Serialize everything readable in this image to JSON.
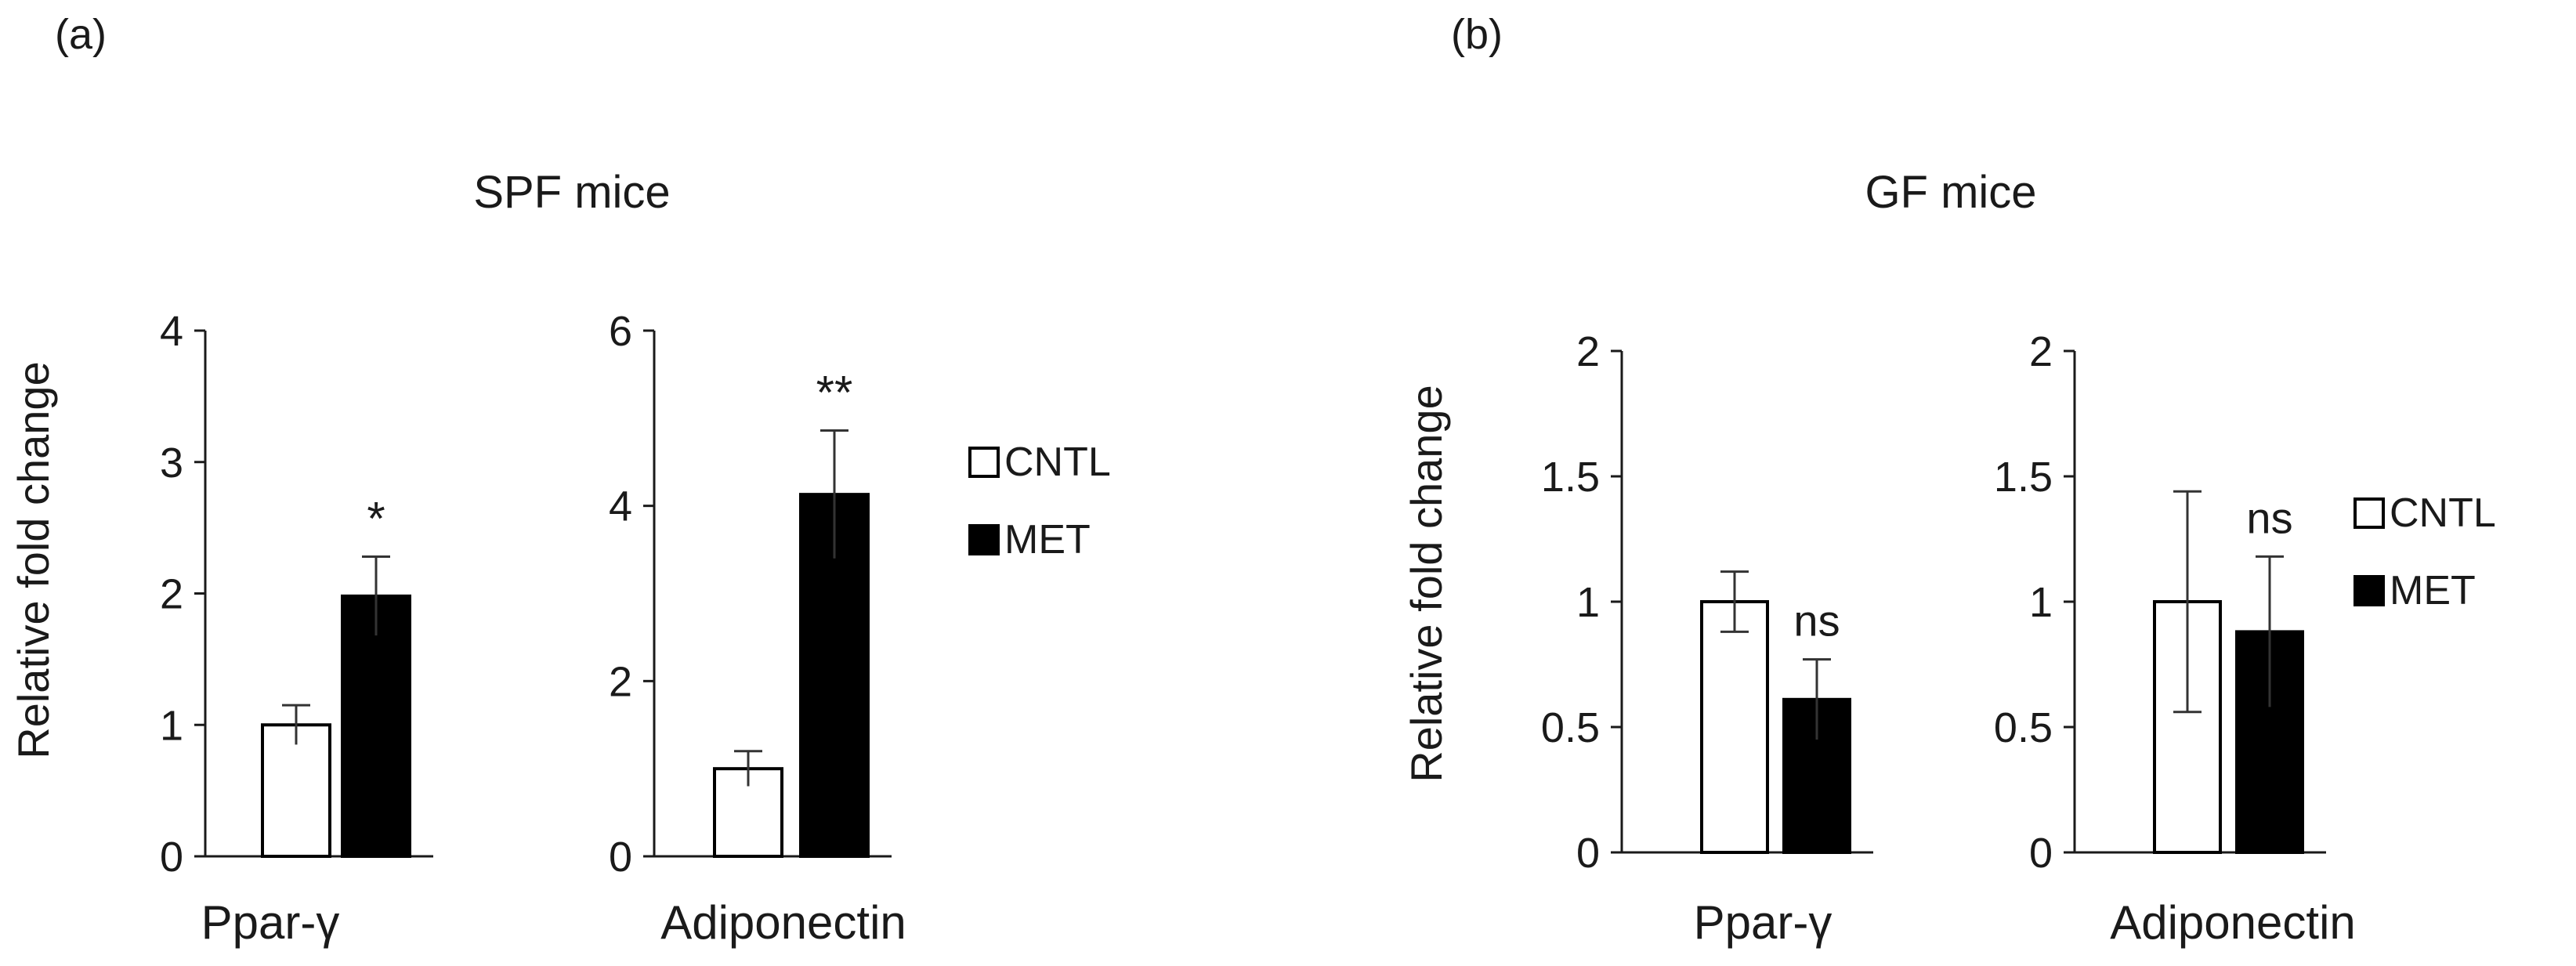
{
  "panels": [
    {
      "id": "a",
      "panel_label": "(a)",
      "title": "SPF mice",
      "legend": [
        "CNTL",
        "MET"
      ]
    },
    {
      "id": "b",
      "panel_label": "(b)",
      "title": "GF mice",
      "legend": [
        "CNTL",
        "MET"
      ]
    }
  ],
  "colors": {
    "CNTL": "#ffffff",
    "MET": "#000000",
    "axis": "#1a1a1a"
  },
  "chart_data": [
    {
      "type": "bar",
      "panel": "(a) SPF mice",
      "title": "Ppar-γ",
      "categories": [
        "Ppar-γ"
      ],
      "ylabel": "Relative fold change",
      "ylim": [
        0,
        4
      ],
      "yticks": [
        "0",
        "1",
        "2",
        "3",
        "4"
      ],
      "series": [
        {
          "name": "CNTL",
          "values": [
            1.0
          ],
          "errors": [
            0.15
          ]
        },
        {
          "name": "MET",
          "values": [
            1.98
          ],
          "errors": [
            0.3
          ]
        }
      ],
      "annotations": [
        "*"
      ]
    },
    {
      "type": "bar",
      "panel": "(a) SPF mice",
      "title": "Adiponectin",
      "categories": [
        "Adiponectin"
      ],
      "ylabel": "",
      "ylim": [
        0,
        6
      ],
      "yticks": [
        "0",
        "2",
        "4",
        "6"
      ],
      "series": [
        {
          "name": "CNTL",
          "values": [
            1.0
          ],
          "errors": [
            0.2
          ]
        },
        {
          "name": "MET",
          "values": [
            4.13
          ],
          "errors": [
            0.73
          ]
        }
      ],
      "annotations": [
        "**"
      ]
    },
    {
      "type": "bar",
      "panel": "(b) GF mice",
      "title": "Ppar-γ",
      "categories": [
        "Ppar-γ"
      ],
      "ylabel": "Relative fold change",
      "ylim": [
        0,
        2
      ],
      "yticks": [
        "0",
        "0.5",
        "1",
        "1.5",
        "2"
      ],
      "series": [
        {
          "name": "CNTL",
          "values": [
            1.0
          ],
          "errors": [
            0.12
          ]
        },
        {
          "name": "MET",
          "values": [
            0.61
          ],
          "errors": [
            0.16
          ]
        }
      ],
      "annotations": [
        "ns"
      ]
    },
    {
      "type": "bar",
      "panel": "(b) GF mice",
      "title": "Adiponectin",
      "categories": [
        "Adiponectin"
      ],
      "ylabel": "",
      "ylim": [
        0,
        2
      ],
      "yticks": [
        "0",
        "0.5",
        "1",
        "1.5",
        "2"
      ],
      "series": [
        {
          "name": "CNTL",
          "values": [
            1.0
          ],
          "errors": [
            0.44
          ]
        },
        {
          "name": "MET",
          "values": [
            0.88
          ],
          "errors": [
            0.3
          ]
        }
      ],
      "annotations": [
        "ns"
      ]
    }
  ]
}
